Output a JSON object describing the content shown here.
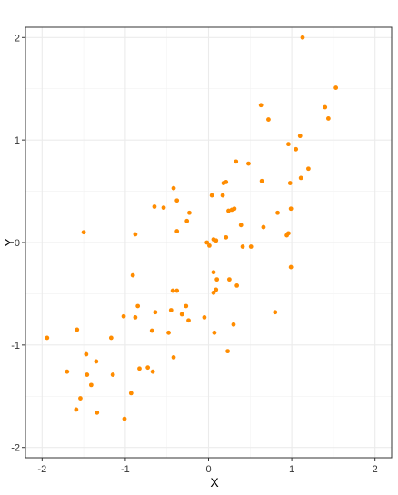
{
  "chart_data": {
    "type": "scatter",
    "title": "",
    "xlabel": "X",
    "ylabel": "Y",
    "xlim": [
      -2.2,
      2.2
    ],
    "ylim": [
      -2.1,
      2.1
    ],
    "x_ticks": [
      -2,
      -1,
      0,
      1,
      2
    ],
    "y_ticks": [
      -2,
      -1,
      0,
      1,
      2
    ],
    "x_tick_labels": [
      "-2",
      "-1",
      "0",
      "1",
      "2"
    ],
    "y_tick_labels": [
      "-2",
      "-1",
      "0",
      "1",
      "2"
    ],
    "grid": true,
    "theme": "bw",
    "legend": "none",
    "point_color": "#FF8C00",
    "x": [
      1.13,
      1.53,
      0.63,
      0.72,
      1.4,
      1.44,
      1.1,
      0.96,
      1.05,
      1.2,
      0.33,
      0.48,
      0.98,
      1.11,
      0.21,
      0.18,
      0.64,
      0.99,
      0.83,
      0.66,
      0.39,
      -0.42,
      0.04,
      0.17,
      -0.65,
      -0.38,
      -0.54,
      -0.23,
      0.31,
      0.24,
      0.28,
      -0.26,
      0.21,
      0.96,
      0.94,
      -0.88,
      -0.38,
      0.06,
      0.09,
      -0.02,
      0.01,
      0.41,
      0.51,
      -1.5,
      0.99,
      0.06,
      -0.91,
      0.1,
      0.25,
      0.34,
      -0.43,
      -0.38,
      0.09,
      -0.27,
      -0.85,
      -0.64,
      -0.45,
      -0.32,
      0.06,
      0.3,
      -0.05,
      -0.88,
      -0.24,
      -0.68,
      -1.02,
      -0.48,
      0.8,
      -1.58,
      -1.17,
      0.07,
      0.23,
      -1.94,
      -1.47,
      -0.42,
      -1.35,
      -0.83,
      -1.7,
      -0.73,
      -0.67,
      -1.41,
      -1.46,
      -1.15,
      -0.93,
      -1.54,
      -1.34,
      -1.59,
      -1.01
    ],
    "y": [
      2.0,
      1.51,
      1.34,
      1.2,
      1.32,
      1.21,
      1.04,
      0.96,
      0.91,
      0.72,
      0.79,
      0.77,
      0.58,
      0.63,
      0.59,
      0.58,
      0.6,
      0.33,
      0.29,
      0.15,
      0.17,
      0.53,
      0.46,
      0.46,
      0.35,
      0.41,
      0.34,
      0.29,
      0.33,
      0.31,
      0.32,
      0.21,
      0.05,
      0.09,
      0.07,
      0.08,
      0.11,
      0.03,
      0.02,
      0.0,
      -0.03,
      -0.04,
      -0.04,
      0.1,
      -0.24,
      -0.29,
      -0.32,
      -0.36,
      -0.36,
      -0.42,
      -0.47,
      -0.47,
      -0.46,
      -0.62,
      -0.62,
      -0.68,
      -0.66,
      -0.7,
      -0.49,
      -0.8,
      -0.73,
      -0.73,
      -0.76,
      -0.86,
      -0.72,
      -0.88,
      -0.68,
      -0.85,
      -0.93,
      -0.88,
      -1.06,
      -0.93,
      -1.09,
      -1.12,
      -1.16,
      -1.23,
      -1.26,
      -1.22,
      -1.26,
      -1.39,
      -1.29,
      -1.29,
      -1.47,
      -1.52,
      -1.66,
      -1.63,
      -1.72
    ]
  }
}
